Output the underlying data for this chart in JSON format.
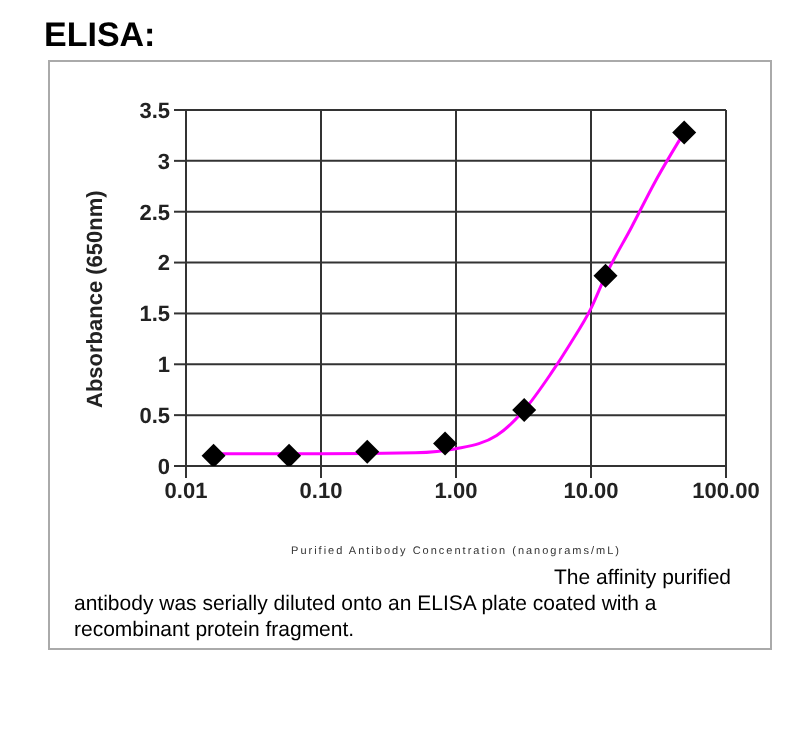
{
  "chart_data": {
    "type": "scatter",
    "title": "ELISA:",
    "xlabel": "Purified Antibody Concentration (nanograms/mL)",
    "ylabel": "Absorbance (650nm)",
    "log": "x",
    "grid": true,
    "legend": false,
    "marker": "diamond",
    "xlim": [
      0.01,
      100
    ],
    "xticks": [
      0.01,
      {
        "value": 0.1,
        "label": "0.10"
      },
      {
        "value": 1,
        "label": "1.00"
      },
      {
        "value": 10,
        "label": "10.00"
      },
      {
        "value": 100,
        "label": "100.00"
      }
    ],
    "ylim": [
      0,
      3.5
    ],
    "yticks": [
      0,
      0.5,
      1,
      1.5,
      2,
      2.5,
      3,
      3.5
    ],
    "x": [
      0.016,
      0.058,
      0.22,
      0.83,
      3.2,
      12.8,
      49
    ],
    "series": [
      {
        "color": "#000000",
        "values": [
          0.1,
          0.1,
          0.14,
          0.22,
          0.55,
          1.87,
          3.28
        ]
      },
      {
        "type": "line",
        "color": "#ff00ff",
        "marker": "none",
        "x": [
          0.016,
          0.1,
          0.5,
          1,
          2,
          3.2,
          5,
          7,
          10,
          12.8,
          20,
          30,
          49
        ],
        "values": [
          0.12,
          0.12,
          0.13,
          0.17,
          0.3,
          0.55,
          0.9,
          1.2,
          1.55,
          1.87,
          2.35,
          2.8,
          3.28
        ]
      }
    ],
    "annotations": [
      "The affinity purified antibody was serially diluted onto an ELISA plate coated with a recombinant protein fragment."
    ]
  }
}
